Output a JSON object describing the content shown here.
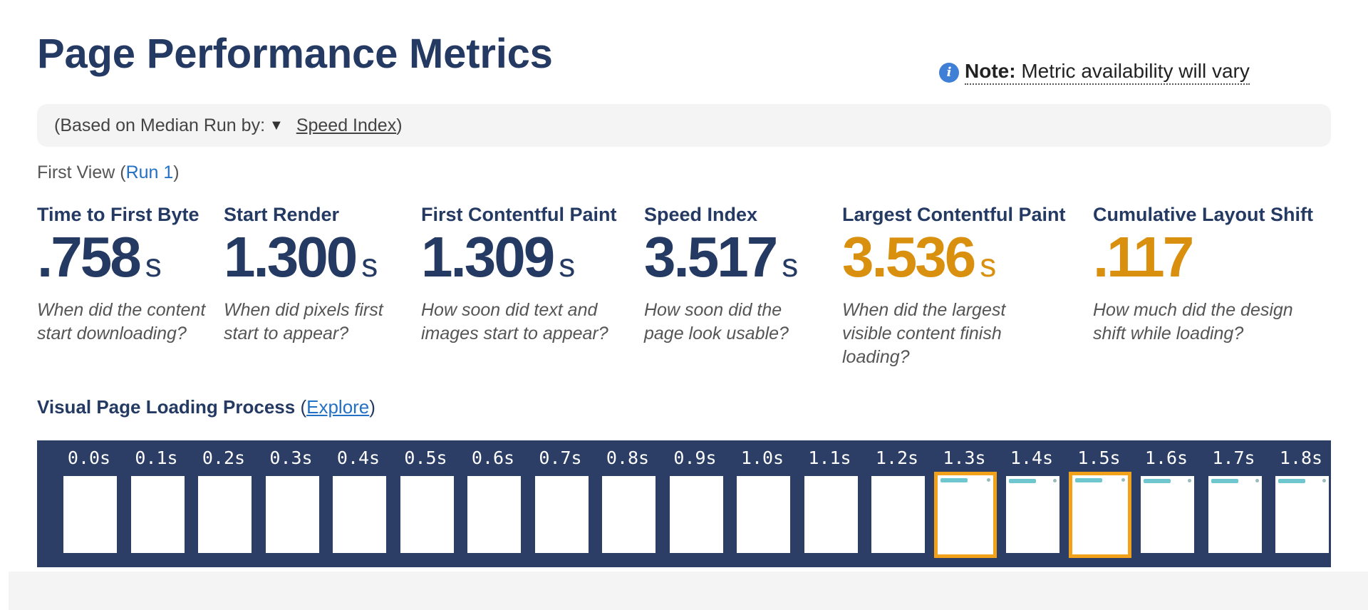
{
  "header": {
    "title": "Page Performance Metrics",
    "note_bold": "Note:",
    "note_text": "Metric availability will vary"
  },
  "median": {
    "prefix": "(Based on Median Run by:",
    "caret": "▼",
    "metric": "Speed Index",
    "suffix": ")"
  },
  "view": {
    "label": "First View (",
    "run": "Run 1",
    "close": ")"
  },
  "metrics": [
    {
      "label": "Time to First Byte",
      "value": ".758",
      "unit": "s",
      "desc": "When did the content start downloading?"
    },
    {
      "label": "Start Render",
      "value": "1.300",
      "unit": "s",
      "desc": "When did pixels first start to appear?"
    },
    {
      "label": "First Contentful Paint",
      "value": "1.309",
      "unit": "s",
      "desc": "How soon did text and images start to appear?"
    },
    {
      "label": "Speed Index",
      "value": "3.517",
      "unit": "s",
      "desc": "How soon did the page look usable?"
    },
    {
      "label": "Largest Contentful Paint",
      "value": "3.536",
      "unit": "s",
      "desc": "When did the largest visible content finish loading?"
    },
    {
      "label": "Cumulative Layout Shift",
      "value": ".117",
      "unit": "",
      "desc": "How much did the design shift while loading?"
    }
  ],
  "colors": {
    "primary": "#243a63",
    "warning": "#d9900f",
    "link": "#2371c4",
    "filmstrip_bg": "#2c3e66",
    "frame_highlight": "#f1a21a"
  },
  "visual": {
    "heading": "Visual Page Loading Process",
    "open": " (",
    "explore": "Explore",
    "close": ")"
  },
  "filmstrip": {
    "frames": [
      {
        "time": "0.0s",
        "content": false,
        "highlight": false
      },
      {
        "time": "0.1s",
        "content": false,
        "highlight": false
      },
      {
        "time": "0.2s",
        "content": false,
        "highlight": false
      },
      {
        "time": "0.3s",
        "content": false,
        "highlight": false
      },
      {
        "time": "0.4s",
        "content": false,
        "highlight": false
      },
      {
        "time": "0.5s",
        "content": false,
        "highlight": false
      },
      {
        "time": "0.6s",
        "content": false,
        "highlight": false
      },
      {
        "time": "0.7s",
        "content": false,
        "highlight": false
      },
      {
        "time": "0.8s",
        "content": false,
        "highlight": false
      },
      {
        "time": "0.9s",
        "content": false,
        "highlight": false
      },
      {
        "time": "1.0s",
        "content": false,
        "highlight": false
      },
      {
        "time": "1.1s",
        "content": false,
        "highlight": false
      },
      {
        "time": "1.2s",
        "content": false,
        "highlight": false
      },
      {
        "time": "1.3s",
        "content": true,
        "highlight": true
      },
      {
        "time": "1.4s",
        "content": true,
        "highlight": false
      },
      {
        "time": "1.5s",
        "content": true,
        "highlight": true
      },
      {
        "time": "1.6s",
        "content": true,
        "highlight": false
      },
      {
        "time": "1.7s",
        "content": true,
        "highlight": false
      },
      {
        "time": "1.8s",
        "content": true,
        "highlight": false
      }
    ]
  }
}
